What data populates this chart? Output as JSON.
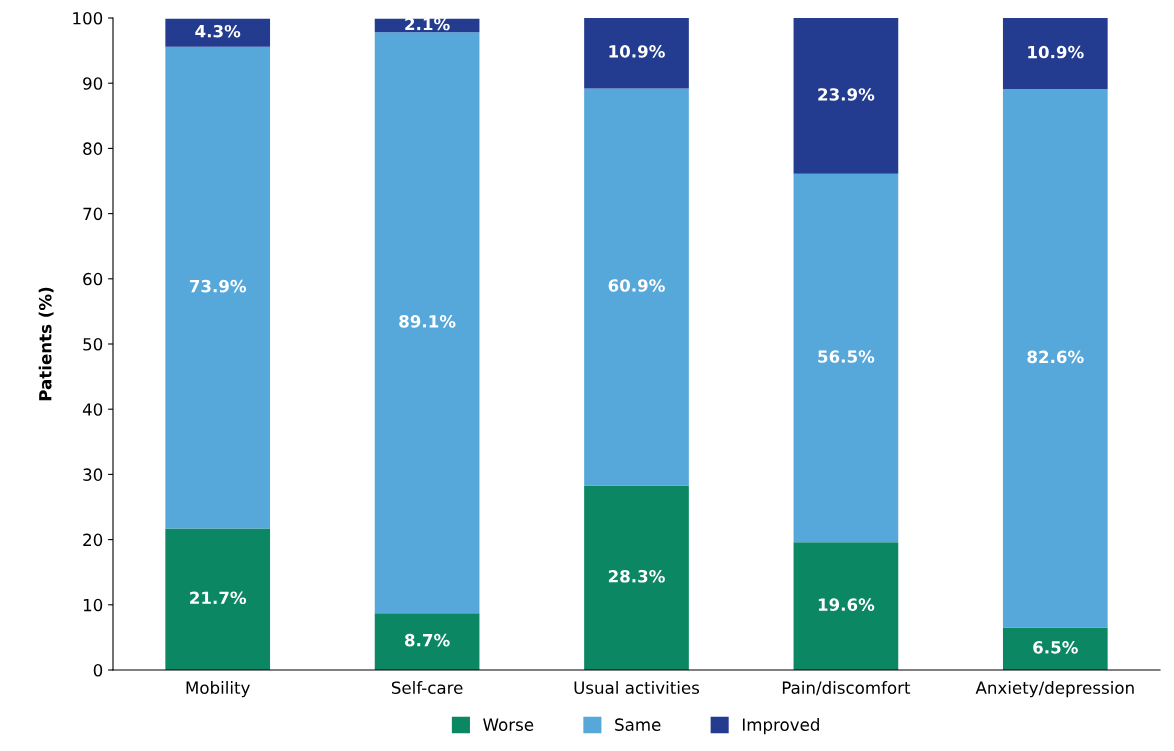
{
  "chart_data": {
    "type": "bar",
    "stacked": true,
    "ylabel": "Patients (%)",
    "categories": [
      "Mobility",
      "Self-care",
      "Usual activities",
      "Pain/discomfort",
      "Anxiety/depression"
    ],
    "series": [
      {
        "name": "Worse",
        "color": "#0b8763",
        "values": [
          21.7,
          8.7,
          28.3,
          19.6,
          6.5
        ],
        "value_labels": [
          "21.7%",
          "8.7%",
          "28.3%",
          "19.6%",
          "6.5%"
        ]
      },
      {
        "name": "Same",
        "color": "#56a8da",
        "values": [
          73.9,
          89.1,
          60.9,
          56.5,
          82.6
        ],
        "value_labels": [
          "73.9%",
          "89.1%",
          "60.9%",
          "56.5%",
          "82.6%"
        ]
      },
      {
        "name": "Improved",
        "color": "#233c8f",
        "values": [
          4.3,
          2.1,
          10.9,
          23.9,
          10.9
        ],
        "value_labels": [
          "4.3%",
          "2.1%",
          "10.9%",
          "23.9%",
          "10.9%"
        ]
      }
    ],
    "ylim": [
      0,
      100
    ],
    "yticks": [
      0,
      10,
      20,
      30,
      40,
      50,
      60,
      70,
      80,
      90,
      100
    ],
    "grid": false,
    "legend": "bottom"
  }
}
